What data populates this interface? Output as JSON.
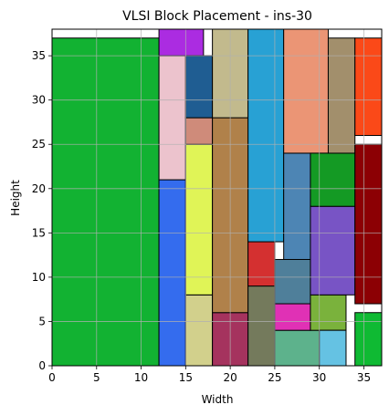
{
  "chart_data": {
    "type": "rectangle-placement",
    "title": "VLSI Block Placement - ins-30",
    "xlabel": "Width",
    "ylabel": "Height",
    "xlim": [
      0,
      37
    ],
    "ylim": [
      0,
      38
    ],
    "xticks": [
      0,
      5,
      10,
      15,
      20,
      25,
      30,
      35
    ],
    "yticks": [
      0,
      5,
      10,
      15,
      20,
      25,
      30,
      35
    ],
    "grid": true,
    "blocks": [
      {
        "x": 0,
        "y": 0,
        "w": 12,
        "h": 37,
        "color": "#12b232"
      },
      {
        "x": 12,
        "y": 0,
        "w": 3,
        "h": 21,
        "color": "#346cee"
      },
      {
        "x": 12,
        "y": 21,
        "w": 3,
        "h": 14,
        "color": "#ecc3cd"
      },
      {
        "x": 12,
        "y": 35,
        "w": 5,
        "h": 3,
        "color": "#ab2ce1"
      },
      {
        "x": 15,
        "y": 0,
        "w": 3,
        "h": 8,
        "color": "#d2d08c"
      },
      {
        "x": 15,
        "y": 8,
        "w": 3,
        "h": 17,
        "color": "#e0f457"
      },
      {
        "x": 15,
        "y": 25,
        "w": 3,
        "h": 3,
        "color": "#cf8b7a"
      },
      {
        "x": 15,
        "y": 28,
        "w": 3,
        "h": 7,
        "color": "#1f5d92"
      },
      {
        "x": 18,
        "y": 0,
        "w": 4,
        "h": 6,
        "color": "#a5335e"
      },
      {
        "x": 18,
        "y": 6,
        "w": 4,
        "h": 22,
        "color": "#b0814a"
      },
      {
        "x": 18,
        "y": 28,
        "w": 4,
        "h": 10,
        "color": "#c2ba8d"
      },
      {
        "x": 22,
        "y": 0,
        "w": 3,
        "h": 9,
        "color": "#747a5c"
      },
      {
        "x": 22,
        "y": 9,
        "w": 3,
        "h": 5,
        "color": "#d43030"
      },
      {
        "x": 22,
        "y": 14,
        "w": 4,
        "h": 24,
        "color": "#28a1d4"
      },
      {
        "x": 25,
        "y": 0,
        "w": 5,
        "h": 4,
        "color": "#5db28c"
      },
      {
        "x": 25,
        "y": 4,
        "w": 4,
        "h": 3,
        "color": "#e031b5"
      },
      {
        "x": 25,
        "y": 7,
        "w": 4,
        "h": 5,
        "color": "#4f7f9a"
      },
      {
        "x": 26,
        "y": 12,
        "w": 3,
        "h": 12,
        "color": "#4d85b4"
      },
      {
        "x": 26,
        "y": 24,
        "w": 5,
        "h": 14,
        "color": "#eb9575"
      },
      {
        "x": 29,
        "y": 4,
        "w": 4,
        "h": 4,
        "color": "#7ab23c"
      },
      {
        "x": 29,
        "y": 8,
        "w": 5,
        "h": 10,
        "color": "#7854c5"
      },
      {
        "x": 29,
        "y": 18,
        "w": 5,
        "h": 6,
        "color": "#149a24"
      },
      {
        "x": 30,
        "y": 0,
        "w": 3,
        "h": 4,
        "color": "#65c2e3"
      },
      {
        "x": 31,
        "y": 24,
        "w": 3,
        "h": 13,
        "color": "#a28f6c"
      },
      {
        "x": 34,
        "y": 0,
        "w": 3,
        "h": 6,
        "color": "#0fba33"
      },
      {
        "x": 34,
        "y": 7,
        "w": 3,
        "h": 18,
        "color": "#8c0004"
      },
      {
        "x": 34,
        "y": 26,
        "w": 3,
        "h": 11,
        "color": "#fb4918"
      }
    ]
  }
}
